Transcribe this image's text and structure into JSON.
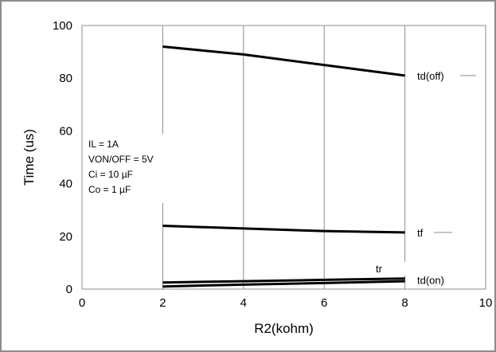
{
  "chart_data": {
    "type": "line",
    "xlabel": "R2(kohm)",
    "ylabel": "Time (us)",
    "xlim": [
      0,
      10
    ],
    "ylim": [
      0,
      100
    ],
    "xticks": [
      0,
      2,
      4,
      6,
      8,
      10
    ],
    "yticks": [
      0,
      20,
      40,
      60,
      80,
      100
    ],
    "grid": "vertical",
    "series": [
      {
        "name": "td(off)",
        "x": [
          2,
          4,
          6,
          8
        ],
        "values": [
          92,
          89,
          85,
          81
        ]
      },
      {
        "name": "tf",
        "x": [
          2,
          4,
          6,
          8
        ],
        "values": [
          24,
          23,
          22,
          21.5
        ]
      },
      {
        "name": "tr",
        "x": [
          2,
          4,
          6,
          8
        ],
        "values": [
          2.5,
          3,
          3.5,
          4
        ]
      },
      {
        "name": "td(on)",
        "x": [
          2,
          4,
          6,
          8
        ],
        "values": [
          1,
          1.7,
          2.3,
          3
        ]
      }
    ],
    "annotations": [
      "IL = 1A",
      "VON/OFF = 5V",
      "Ci = 10 µF",
      "Co = 1 µF"
    ]
  }
}
